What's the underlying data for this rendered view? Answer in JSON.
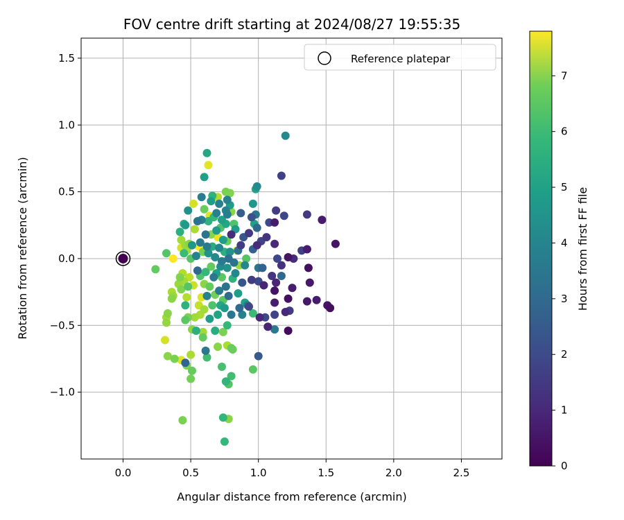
{
  "chart_data": {
    "type": "scatter",
    "title": "FOV centre drift starting at 2024/08/27 19:55:35",
    "xlabel": "Angular distance from reference (arcmin)",
    "ylabel": "Rotation from reference (arcmin)",
    "xlim": [
      -0.31,
      2.8
    ],
    "ylim": [
      -1.5,
      1.65
    ],
    "xticks": [
      0.0,
      0.5,
      1.0,
      1.5,
      2.0,
      2.5
    ],
    "xtick_labels": [
      "0.0",
      "0.5",
      "1.0",
      "1.5",
      "2.0",
      "2.5"
    ],
    "yticks": [
      -1.0,
      -0.5,
      0.0,
      0.5,
      1.0,
      1.5
    ],
    "ytick_labels": [
      "−1.0",
      "−0.5",
      "0.0",
      "0.5",
      "1.0",
      "1.5"
    ],
    "grid": true,
    "legend": {
      "placement": "top-right",
      "entries": [
        "Reference platepar"
      ]
    },
    "colorbar": {
      "label": "Hours from first FF file",
      "min": 0,
      "max": 7.8,
      "ticks": [
        0,
        1,
        2,
        3,
        4,
        5,
        6,
        7
      ],
      "tick_labels": [
        "0",
        "1",
        "2",
        "3",
        "4",
        "5",
        "6",
        "7"
      ],
      "colormap": "viridis"
    },
    "reference": {
      "x": 0.0,
      "y": 0.0,
      "hours": 0.0
    },
    "points": [
      [
        1.57,
        0.11,
        0.4
      ],
      [
        1.53,
        -0.37,
        0.3
      ],
      [
        1.51,
        -0.35,
        0.4
      ],
      [
        1.47,
        0.29,
        0.6
      ],
      [
        1.43,
        -0.31,
        0.6
      ],
      [
        1.38,
        -0.18,
        0.5
      ],
      [
        1.37,
        -0.07,
        0.3
      ],
      [
        1.36,
        0.33,
        1.3
      ],
      [
        1.36,
        -0.32,
        0.5
      ],
      [
        1.36,
        0.07,
        0.6
      ],
      [
        1.32,
        0.06,
        1.5
      ],
      [
        1.26,
        0.0,
        1.0
      ],
      [
        1.25,
        -0.22,
        0.6
      ],
      [
        1.23,
        -0.39,
        1.4
      ],
      [
        1.22,
        -0.54,
        0.2
      ],
      [
        1.22,
        -0.3,
        0.3
      ],
      [
        1.22,
        0.01,
        0.4
      ],
      [
        1.2,
        -0.4,
        0.9
      ],
      [
        1.19,
        0.32,
        1.7
      ],
      [
        1.17,
        -0.05,
        1.1
      ],
      [
        1.17,
        -0.13,
        2.6
      ],
      [
        1.17,
        0.62,
        1.5
      ],
      [
        1.2,
        0.92,
        3.7
      ],
      [
        1.14,
        0.0,
        1.7
      ],
      [
        1.13,
        -0.18,
        0.8
      ],
      [
        1.13,
        0.36,
        1.4
      ],
      [
        1.12,
        0.11,
        0.9
      ],
      [
        1.12,
        0.27,
        0.6
      ],
      [
        1.12,
        -0.33,
        0.6
      ],
      [
        1.12,
        -0.42,
        1.6
      ],
      [
        1.12,
        -0.53,
        3.2
      ],
      [
        1.12,
        -0.24,
        0.4
      ],
      [
        1.1,
        -0.13,
        1.2
      ],
      [
        1.08,
        0.27,
        1.7
      ],
      [
        1.07,
        -0.51,
        0.8
      ],
      [
        1.06,
        0.16,
        1.2
      ],
      [
        1.05,
        -0.44,
        1.7
      ],
      [
        1.04,
        -0.2,
        0.8
      ],
      [
        1.03,
        -0.07,
        2.5
      ],
      [
        1.02,
        0.13,
        1.6
      ],
      [
        1.01,
        -0.44,
        0.9
      ],
      [
        1.0,
        -0.73,
        2.2
      ],
      [
        1.0,
        -0.07,
        3.1
      ],
      [
        1.0,
        -0.17,
        1.7
      ],
      [
        0.99,
        0.23,
        2.6
      ],
      [
        0.99,
        0.1,
        1.0
      ],
      [
        0.99,
        0.54,
        3.7
      ],
      [
        0.98,
        0.52,
        4.5
      ],
      [
        0.98,
        0.33,
        3.0
      ],
      [
        0.97,
        0.26,
        4.4
      ],
      [
        0.96,
        0.41,
        4.1
      ],
      [
        0.96,
        -0.41,
        5.3
      ],
      [
        0.96,
        -0.83,
        5.8
      ],
      [
        0.96,
        0.07,
        2.4
      ],
      [
        0.95,
        -0.16,
        1.4
      ],
      [
        0.95,
        0.31,
        2.0
      ],
      [
        0.93,
        -0.36,
        1.7
      ],
      [
        0.93,
        0.19,
        1.3
      ],
      [
        0.92,
        -0.35,
        3.0
      ],
      [
        0.91,
        0.0,
        5.7
      ],
      [
        0.9,
        -0.33,
        4.4
      ],
      [
        0.9,
        -0.05,
        3.6
      ],
      [
        0.89,
        0.16,
        2.1
      ],
      [
        0.88,
        -0.18,
        2.1
      ],
      [
        0.88,
        -0.42,
        3.4
      ],
      [
        0.87,
        0.1,
        1.4
      ],
      [
        0.87,
        0.34,
        2.3
      ],
      [
        0.86,
        -0.05,
        6.6
      ],
      [
        0.86,
        -0.37,
        2.6
      ],
      [
        0.85,
        0.06,
        2.9
      ],
      [
        0.85,
        -0.26,
        4.3
      ],
      [
        0.84,
        0.06,
        7.6
      ],
      [
        0.83,
        0.22,
        4.2
      ],
      [
        0.83,
        -0.11,
        3.6
      ],
      [
        0.82,
        -0.03,
        3.0
      ],
      [
        0.82,
        0.26,
        5.6
      ],
      [
        0.81,
        -0.68,
        6.0
      ],
      [
        0.81,
        -0.15,
        5.0
      ],
      [
        0.8,
        0.18,
        1.0
      ],
      [
        0.8,
        -0.42,
        3.1
      ],
      [
        0.8,
        0.35,
        6.4
      ],
      [
        0.8,
        -0.88,
        5.4
      ],
      [
        0.79,
        0.49,
        6.3
      ],
      [
        0.79,
        0.05,
        3.9
      ],
      [
        0.79,
        0.4,
        4.2
      ],
      [
        0.78,
        -1.2,
        6.4
      ],
      [
        0.78,
        -0.94,
        5.7
      ],
      [
        0.78,
        -0.28,
        2.7
      ],
      [
        0.78,
        0.0,
        2.9
      ],
      [
        0.77,
        0.44,
        3.5
      ],
      [
        0.77,
        0.13,
        6.0
      ],
      [
        0.77,
        0.33,
        3.3
      ],
      [
        0.77,
        -0.5,
        5.2
      ],
      [
        0.77,
        -0.07,
        4.0
      ],
      [
        0.77,
        -0.65,
        6.8
      ],
      [
        0.76,
        0.5,
        6.2
      ],
      [
        0.76,
        -0.92,
        5.1
      ],
      [
        0.76,
        -0.21,
        3.0
      ],
      [
        0.76,
        0.26,
        4.6
      ],
      [
        0.76,
        0.36,
        3.5
      ],
      [
        0.75,
        -1.37,
        5.2
      ],
      [
        0.75,
        -0.37,
        4.2
      ],
      [
        0.75,
        0.05,
        4.9
      ],
      [
        0.74,
        -0.55,
        6.2
      ],
      [
        0.74,
        -1.19,
        5.1
      ],
      [
        0.74,
        -0.31,
        5.8
      ],
      [
        0.74,
        0.14,
        4.3
      ],
      [
        0.73,
        -0.81,
        5.5
      ],
      [
        0.73,
        -0.02,
        3.2
      ],
      [
        0.73,
        0.29,
        4.4
      ],
      [
        0.73,
        -0.14,
        5.8
      ],
      [
        0.72,
        -0.06,
        3.8
      ],
      [
        0.72,
        0.23,
        5.6
      ],
      [
        0.72,
        -0.35,
        4.6
      ],
      [
        0.71,
        0.41,
        3.4
      ],
      [
        0.71,
        -0.24,
        3.2
      ],
      [
        0.71,
        0.08,
        3.6
      ],
      [
        0.7,
        -0.42,
        4.5
      ],
      [
        0.7,
        0.16,
        7.6
      ],
      [
        0.7,
        0.46,
        6.9
      ],
      [
        0.7,
        -0.66,
        6.4
      ],
      [
        0.69,
        -0.11,
        4.4
      ],
      [
        0.69,
        0.21,
        4.2
      ],
      [
        0.69,
        0.34,
        3.4
      ],
      [
        0.68,
        0.01,
        3.7
      ],
      [
        0.68,
        -0.27,
        6.1
      ],
      [
        0.68,
        -0.54,
        4.8
      ],
      [
        0.67,
        0.31,
        5.2
      ],
      [
        0.67,
        -0.14,
        3.1
      ],
      [
        0.66,
        0.47,
        5.0
      ],
      [
        0.66,
        0.09,
        4.8
      ],
      [
        0.66,
        -0.35,
        5.6
      ],
      [
        0.65,
        -0.06,
        5.9
      ],
      [
        0.65,
        0.18,
        6.4
      ],
      [
        0.65,
        0.43,
        4.3
      ],
      [
        0.64,
        -0.45,
        4.3
      ],
      [
        0.64,
        0.32,
        7.4
      ],
      [
        0.64,
        -0.21,
        5.9
      ],
      [
        0.63,
        0.7,
        7.5
      ],
      [
        0.63,
        0.04,
        4.0
      ],
      [
        0.63,
        0.28,
        5.0
      ],
      [
        0.62,
        -0.28,
        3.5
      ],
      [
        0.62,
        0.79,
        4.6
      ],
      [
        0.62,
        -0.74,
        5.4
      ],
      [
        0.62,
        0.09,
        3.2
      ],
      [
        0.61,
        0.18,
        3.0
      ],
      [
        0.61,
        -0.69,
        3.1
      ],
      [
        0.61,
        -0.1,
        5.2
      ],
      [
        0.6,
        0.37,
        6.0
      ],
      [
        0.6,
        -0.38,
        6.7
      ],
      [
        0.6,
        0.61,
        4.4
      ],
      [
        0.6,
        -0.19,
        6.4
      ],
      [
        0.59,
        -0.55,
        6.7
      ],
      [
        0.59,
        0.05,
        6.1
      ],
      [
        0.59,
        -0.59,
        5.9
      ],
      [
        0.58,
        0.29,
        3.4
      ],
      [
        0.58,
        -0.29,
        7.4
      ],
      [
        0.58,
        0.46,
        3.3
      ],
      [
        0.57,
        -0.13,
        5.6
      ],
      [
        0.57,
        0.12,
        3.2
      ],
      [
        0.57,
        -0.42,
        6.8
      ],
      [
        0.56,
        0.09,
        7.8
      ],
      [
        0.56,
        -0.35,
        7.1
      ],
      [
        0.55,
        0.28,
        3.0
      ],
      [
        0.55,
        -0.09,
        2.7
      ],
      [
        0.54,
        -0.54,
        4.9
      ],
      [
        0.54,
        0.02,
        3.5
      ],
      [
        0.53,
        -0.44,
        6.7
      ],
      [
        0.53,
        0.22,
        6.8
      ],
      [
        0.52,
        -0.2,
        7.2
      ],
      [
        0.52,
        0.41,
        7.3
      ],
      [
        0.51,
        0.1,
        4.1
      ],
      [
        0.51,
        -0.84,
        5.9
      ],
      [
        0.51,
        -0.53,
        6.4
      ],
      [
        0.5,
        -0.9,
        6.1
      ],
      [
        0.5,
        0.0,
        5.7
      ],
      [
        0.5,
        -0.72,
        6.8
      ],
      [
        0.49,
        0.11,
        6.4
      ],
      [
        0.49,
        -0.14,
        7.0
      ],
      [
        0.48,
        0.36,
        3.9
      ],
      [
        0.48,
        -0.21,
        5.7
      ],
      [
        0.48,
        -0.44,
        6.2
      ],
      [
        0.47,
        0.06,
        6.7
      ],
      [
        0.47,
        -0.8,
        6.3
      ],
      [
        0.47,
        -0.29,
        6.9
      ],
      [
        0.46,
        -0.78,
        2.5
      ],
      [
        0.46,
        0.1,
        6.6
      ],
      [
        0.46,
        0.25,
        4.2
      ],
      [
        0.46,
        -0.35,
        5.0
      ],
      [
        0.46,
        -0.46,
        5.8
      ],
      [
        0.45,
        -0.17,
        6.7
      ],
      [
        0.45,
        0.04,
        5.3
      ],
      [
        0.45,
        0.26,
        4.8
      ],
      [
        0.44,
        -1.21,
        6.2
      ],
      [
        0.44,
        -0.11,
        6.9
      ],
      [
        0.43,
        0.14,
        6.7
      ],
      [
        0.43,
        -0.76,
        7.4
      ],
      [
        0.43,
        -0.23,
        6.3
      ],
      [
        0.43,
        0.08,
        7.3
      ],
      [
        0.42,
        0.2,
        4.9
      ],
      [
        0.42,
        -0.14,
        6.3
      ],
      [
        0.41,
        -0.19,
        6.6
      ],
      [
        0.38,
        -0.75,
        6.2
      ],
      [
        0.37,
        0.0,
        7.8
      ],
      [
        0.37,
        -0.28,
        6.6
      ],
      [
        0.36,
        -0.3,
        6.4
      ],
      [
        0.36,
        -0.25,
        6.8
      ],
      [
        0.33,
        -0.41,
        6.4
      ],
      [
        0.33,
        -0.73,
        6.4
      ],
      [
        0.32,
        -0.48,
        6.5
      ],
      [
        0.32,
        -0.44,
        6.7
      ],
      [
        0.31,
        -0.61,
        7.3
      ],
      [
        0.32,
        0.04,
        5.7
      ],
      [
        0.24,
        -0.08,
        5.9
      ],
      [
        0.8,
        -0.67,
        6.0
      ]
    ]
  }
}
